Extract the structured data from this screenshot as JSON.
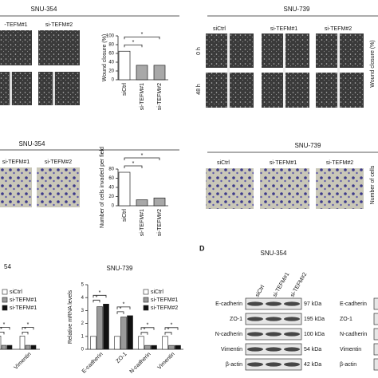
{
  "panels": {
    "wound_354": {
      "title": "SNU-354",
      "labels": [
        "-TEFM#1",
        "si-TEFM#2"
      ]
    },
    "wound_739": {
      "title": "SNU-739",
      "labels": [
        "siCtrl",
        "si-TEFM#1",
        "si-TEFM#2"
      ],
      "rows": [
        "0 h",
        "48 h"
      ],
      "ylabel": "Wound closure (%)"
    },
    "invasion_354": {
      "title": "SNU-354",
      "labels": [
        "si-TEFM#1",
        "si-TEFM#2"
      ]
    },
    "invasion_739": {
      "title": "SNU-739",
      "labels": [
        "siCtrl",
        "si-TEFM#1",
        "si-TEFM#2"
      ],
      "ylabel": "Number of cells"
    },
    "western": {
      "letter": "D",
      "title": "SNU-354",
      "lanes": [
        "siCtrl",
        "si-TEFM#1",
        "si-TEFM#2"
      ],
      "rows": [
        {
          "protein": "E-cadherin",
          "size": "97 kDa"
        },
        {
          "protein": "ZO-1",
          "size": "195 kDa"
        },
        {
          "protein": "N-cadherin",
          "size": "100 kDa"
        },
        {
          "protein": "Vimentin",
          "size": "54 kDa"
        },
        {
          "protein": "β-actin",
          "size": "42 kDa"
        }
      ],
      "right_rows": [
        "E-cadherin",
        "ZO-1",
        "N-cadherin",
        "Vimentin",
        "β-actin"
      ]
    }
  },
  "chart_data": [
    {
      "type": "bar",
      "ylabel": "Wound closure (%)",
      "categories": [
        "siCtrl",
        "si-TEFM#1",
        "si-TEFM#2"
      ],
      "values": [
        65,
        33,
        33
      ],
      "colors": [
        "#ffffff",
        "#a8a8a8",
        "#a8a8a8"
      ],
      "ylim": [
        0,
        100
      ],
      "yticks": [
        0,
        20,
        40,
        60,
        80,
        100
      ],
      "significance": "*"
    },
    {
      "type": "bar",
      "ylabel": "Number of cells invaded per field",
      "categories": [
        "siCtrl",
        "si-TEFM#1",
        "si-TEFM#2"
      ],
      "values": [
        73,
        13,
        17
      ],
      "colors": [
        "#ffffff",
        "#a8a8a8",
        "#a8a8a8"
      ],
      "ylim": [
        0,
        80
      ],
      "yticks": [
        0,
        20,
        40,
        60,
        80
      ],
      "significance": "*"
    },
    {
      "type": "grouped_bar",
      "title": "54",
      "categories": [
        null,
        "Vimentin"
      ],
      "series": [
        {
          "name": "siCtrl",
          "color": "#ffffff",
          "values": [
            1,
            1
          ]
        },
        {
          "name": "si-TEFM#1",
          "color": "#9a9a9a",
          "values": [
            0.3,
            0.3
          ]
        },
        {
          "name": "si-TEFM#1",
          "color": "#111111",
          "values": [
            0.3,
            0.3
          ]
        }
      ],
      "ylim": [
        0,
        5
      ],
      "significance": "*"
    },
    {
      "type": "grouped_bar",
      "title": "SNU-739",
      "ylabel": "Relative mRNA levels",
      "categories": [
        "E-cadherin",
        "ZO-1",
        "N-cadherin",
        "Vimentin"
      ],
      "series": [
        {
          "name": "siCtrl",
          "color": "#ffffff",
          "values": [
            1,
            1,
            1,
            1
          ]
        },
        {
          "name": "si-TEFM#1",
          "color": "#9a9a9a",
          "values": [
            3.3,
            2.5,
            0.3,
            0.3
          ]
        },
        {
          "name": "si-TEFM#2",
          "color": "#111111",
          "values": [
            3.5,
            2.6,
            0.3,
            0.3
          ]
        }
      ],
      "ylim": [
        0,
        5
      ],
      "yticks": [
        0,
        1,
        2,
        3,
        4,
        5
      ],
      "significance": "*"
    }
  ]
}
